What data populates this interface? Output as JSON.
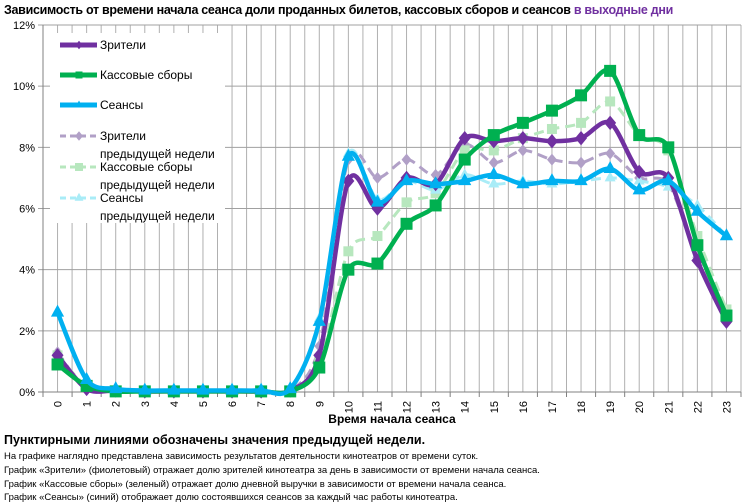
{
  "title": {
    "main": "Зависимость от времени начала сеанса доли проданных билетов, кассовых сборов и сеансов",
    "highlight": "в выходные дни",
    "highlight_color": "#7030a0"
  },
  "chart_data": {
    "type": "line",
    "xlabel": "Время начала сеанса",
    "ylabel": "",
    "categories": [
      "0",
      "1",
      "2",
      "3",
      "4",
      "5",
      "6",
      "7",
      "8",
      "9",
      "10",
      "11",
      "12",
      "13",
      "14",
      "15",
      "16",
      "17",
      "18",
      "19",
      "20",
      "21",
      "22",
      "23"
    ],
    "ylim": [
      0,
      12
    ],
    "yticks": [
      "0%",
      "2%",
      "4%",
      "6%",
      "8%",
      "10%",
      "12%"
    ],
    "grid": true,
    "legend_position": "top-left",
    "series": [
      {
        "name": "Зрители",
        "color": "#7030a0",
        "dashed": false,
        "marker": "diamond",
        "values": [
          1.2,
          0.1,
          0.05,
          0.02,
          0.02,
          0.02,
          0.02,
          0.02,
          0.05,
          1.2,
          6.9,
          6.0,
          7.0,
          6.8,
          8.3,
          8.2,
          8.3,
          8.2,
          8.3,
          8.8,
          7.2,
          7.0,
          4.3,
          2.3
        ]
      },
      {
        "name": "Кассовые сборы",
        "color": "#00b050",
        "dashed": false,
        "marker": "square",
        "values": [
          0.9,
          0.2,
          0.02,
          0.02,
          0.02,
          0.02,
          0.02,
          0.02,
          0.02,
          0.8,
          4.0,
          4.2,
          5.5,
          6.1,
          7.6,
          8.4,
          8.8,
          9.2,
          9.7,
          10.5,
          8.4,
          8.0,
          4.8,
          2.5
        ]
      },
      {
        "name": "Сеансы",
        "color": "#00b0f0",
        "dashed": false,
        "marker": "triangle",
        "values": [
          2.6,
          0.4,
          0.1,
          0.05,
          0.05,
          0.05,
          0.05,
          0.05,
          0.1,
          2.3,
          7.7,
          6.2,
          6.9,
          6.8,
          6.9,
          7.1,
          6.8,
          6.9,
          6.9,
          7.3,
          6.6,
          6.9,
          5.9,
          5.1
        ]
      },
      {
        "name": "Зрители предыдущей недели",
        "color": "#b1a0c7",
        "dashed": true,
        "marker": "diamond",
        "values": [
          1.3,
          0.1,
          0.05,
          0.02,
          0.02,
          0.02,
          0.02,
          0.02,
          0.05,
          1.5,
          7.6,
          7.0,
          7.6,
          7.1,
          8.1,
          7.5,
          7.9,
          7.6,
          7.5,
          7.8,
          7.0,
          6.8,
          4.4,
          2.6
        ]
      },
      {
        "name": "Кассовые сборы предыдущей недели",
        "color": "#b7e7be",
        "dashed": true,
        "marker": "square",
        "values": [
          1.2,
          0.2,
          0.02,
          0.02,
          0.02,
          0.02,
          0.02,
          0.02,
          0.02,
          1.0,
          4.6,
          5.1,
          6.2,
          6.5,
          7.9,
          7.9,
          8.3,
          8.6,
          8.8,
          9.5,
          8.4,
          7.9,
          5.1,
          2.7
        ]
      },
      {
        "name": "Сеансы предыдущей недели",
        "color": "#a9ecf7",
        "dashed": true,
        "marker": "triangle",
        "values": [
          2.6,
          0.4,
          0.1,
          0.05,
          0.05,
          0.05,
          0.05,
          0.05,
          0.1,
          2.4,
          7.8,
          6.3,
          6.9,
          6.6,
          7.1,
          6.8,
          6.9,
          6.8,
          6.9,
          7.0,
          6.9,
          6.7,
          6.1,
          5.1
        ]
      }
    ]
  },
  "legend": [
    {
      "line1": "Зрители",
      "line2": ""
    },
    {
      "line1": "Кассовые сборы",
      "line2": ""
    },
    {
      "line1": "Сеансы",
      "line2": ""
    },
    {
      "line1": "Зрители",
      "line2": "предыдущей недели"
    },
    {
      "line1": "Кассовые сборы",
      "line2": "предыдущей недели"
    },
    {
      "line1": "Сеансы",
      "line2": "предыдущей недели"
    }
  ],
  "footer": {
    "note": "Пунктирными линиями обозначены значения предыдущей недели.",
    "lines": [
      "На графике наглядно представлена зависимость результатов деятельности кинотеатров от времени суток.",
      "График «Зрители» (фиолетовый) отражает долю зрителей кинотеатра за день в зависимости от времени начала сеанса.",
      "График «Кассовые сборы» (зеленый) отражает долю дневной выручки в зависимости от времени начала сеанса.",
      "График «Сеансы» (синий) отображает долю состоявшихся сеансов за каждый час работы кинотеатра."
    ]
  }
}
